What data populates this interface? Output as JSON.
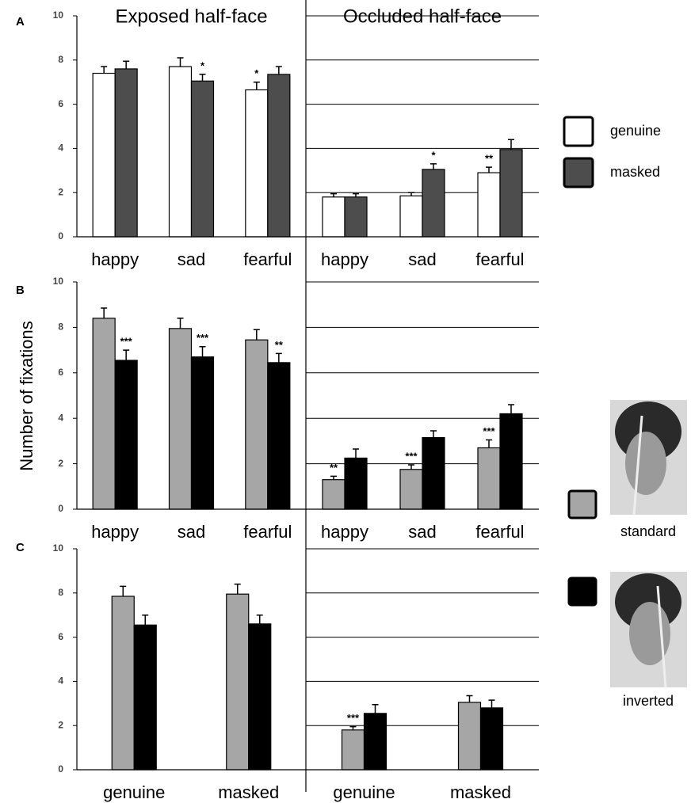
{
  "ylabel": "Number of fixations",
  "chart_data": [
    {
      "type": "bar",
      "label": "A",
      "legend": [
        "genuine",
        "masked"
      ],
      "ylim": [
        0,
        10
      ],
      "yticks": [
        0,
        2,
        4,
        6,
        8,
        10
      ],
      "halves": [
        {
          "title": "Exposed half-face",
          "grid": false,
          "categories": [
            "happy",
            "sad",
            "fearful"
          ],
          "series": [
            {
              "color": "#ffffff",
              "values": [
                7.4,
                7.7,
                6.65
              ],
              "errors": [
                0.3,
                0.4,
                0.35
              ],
              "stars": [
                null,
                null,
                "*"
              ]
            },
            {
              "color": "#4d4d4d",
              "values": [
                7.6,
                7.05,
                7.35
              ],
              "errors": [
                0.35,
                0.3,
                0.35
              ],
              "stars": [
                null,
                "*",
                null
              ]
            }
          ]
        },
        {
          "title": "Occluded half-face",
          "grid": true,
          "categories": [
            "happy",
            "sad",
            "fearful"
          ],
          "series": [
            {
              "color": "#ffffff",
              "values": [
                1.8,
                1.85,
                2.9
              ],
              "errors": [
                0.15,
                0.15,
                0.25
              ],
              "stars": [
                null,
                null,
                "**"
              ]
            },
            {
              "color": "#4d4d4d",
              "values": [
                1.8,
                3.05,
                3.95
              ],
              "errors": [
                0.15,
                0.25,
                0.45
              ],
              "stars": [
                null,
                "*",
                null
              ]
            }
          ]
        }
      ]
    },
    {
      "type": "bar",
      "label": "B",
      "legend": [
        "standard",
        "inverted"
      ],
      "ylim": [
        0,
        10
      ],
      "yticks": [
        0,
        2,
        4,
        6,
        8,
        10
      ],
      "halves": [
        {
          "grid": false,
          "categories": [
            "happy",
            "sad",
            "fearful"
          ],
          "series": [
            {
              "color": "#a6a6a6",
              "values": [
                8.4,
                7.95,
                7.45
              ],
              "errors": [
                0.45,
                0.45,
                0.45
              ],
              "stars": [
                null,
                null,
                null
              ]
            },
            {
              "color": "#000000",
              "values": [
                6.55,
                6.7,
                6.45
              ],
              "errors": [
                0.45,
                0.45,
                0.4
              ],
              "stars": [
                "***",
                "***",
                "**"
              ]
            }
          ]
        },
        {
          "grid": true,
          "categories": [
            "happy",
            "sad",
            "fearful"
          ],
          "series": [
            {
              "color": "#a6a6a6",
              "values": [
                1.3,
                1.75,
                2.7
              ],
              "errors": [
                0.15,
                0.2,
                0.35
              ],
              "stars": [
                "**",
                "***",
                "***"
              ]
            },
            {
              "color": "#000000",
              "values": [
                2.25,
                3.15,
                4.2
              ],
              "errors": [
                0.4,
                0.3,
                0.4
              ],
              "stars": [
                null,
                null,
                null
              ]
            }
          ]
        }
      ]
    },
    {
      "type": "bar",
      "label": "C",
      "ylim": [
        0,
        10
      ],
      "yticks": [
        0,
        2,
        4,
        6,
        8,
        10
      ],
      "halves": [
        {
          "grid": false,
          "categories": [
            "genuine",
            "masked"
          ],
          "series": [
            {
              "color": "#a6a6a6",
              "values": [
                7.85,
                7.95
              ],
              "errors": [
                0.45,
                0.45
              ],
              "stars": [
                null,
                null
              ]
            },
            {
              "color": "#000000",
              "values": [
                6.55,
                6.6
              ],
              "errors": [
                0.45,
                0.4
              ],
              "stars": [
                null,
                null
              ]
            }
          ]
        },
        {
          "grid": true,
          "categories": [
            "genuine",
            "masked"
          ],
          "series": [
            {
              "color": "#a6a6a6",
              "values": [
                1.8,
                3.05
              ],
              "errors": [
                0.15,
                0.3
              ],
              "stars": [
                "***",
                null
              ]
            },
            {
              "color": "#000000",
              "values": [
                2.55,
                2.8
              ],
              "errors": [
                0.4,
                0.35
              ],
              "stars": [
                null,
                null
              ]
            }
          ]
        }
      ]
    }
  ]
}
